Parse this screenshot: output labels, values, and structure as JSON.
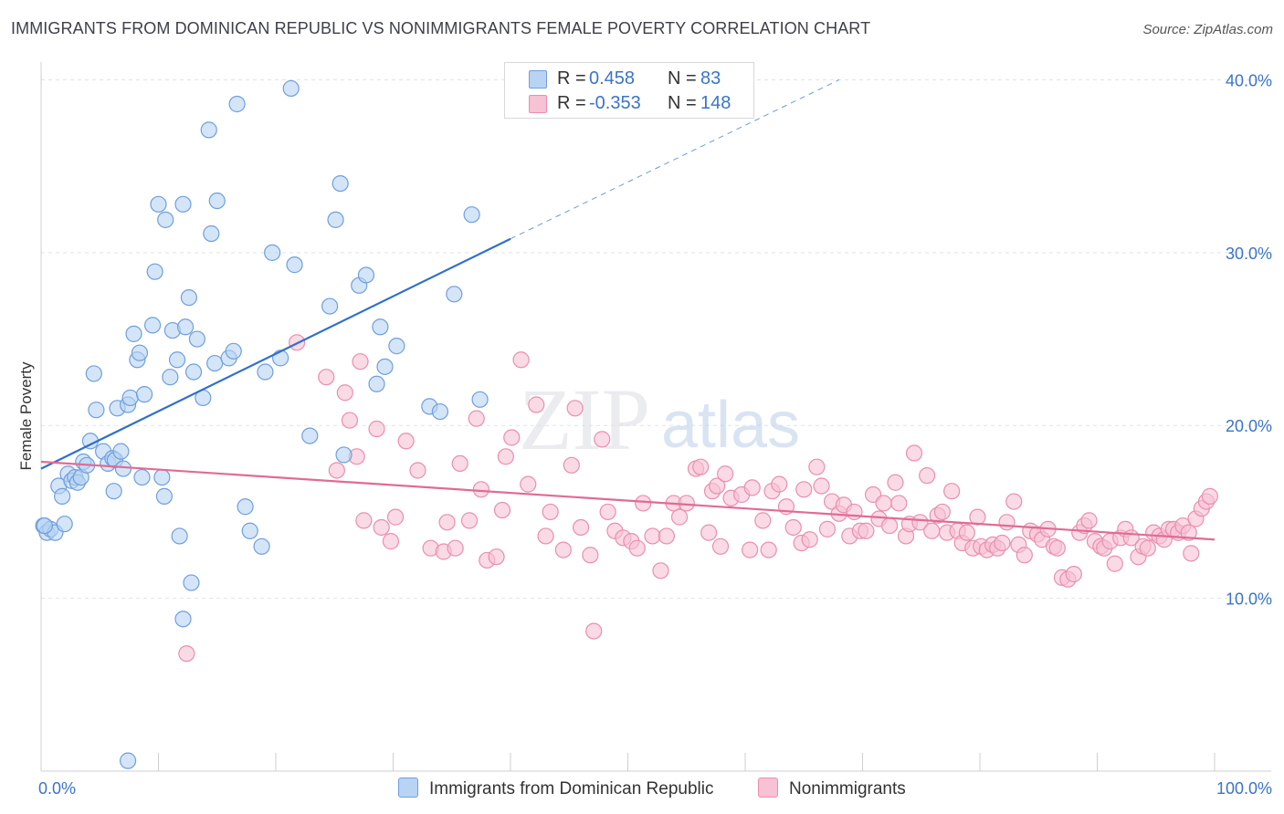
{
  "header": {
    "title": "IMMIGRANTS FROM DOMINICAN REPUBLIC VS NONIMMIGRANTS FEMALE POVERTY CORRELATION CHART",
    "source": "Source: ZipAtlas.com"
  },
  "watermark": {
    "zip": "ZIP",
    "atlas": "atlas"
  },
  "colors": {
    "blue_fill": "#b8d3f4",
    "blue_edge": "#6f9fdc",
    "blue_line": "#2f6fcf",
    "pink_fill": "#f7c2d3",
    "pink_edge": "#e98fae",
    "pink_line": "#e06b95",
    "grid": "#e3e3e3",
    "tick_label": "#3a74c9"
  },
  "legend_top": {
    "rows": [
      {
        "r_label": "R =",
        "r_value": "0.458",
        "n_label": "N =",
        "n_value": "83"
      },
      {
        "r_label": "R =",
        "r_value": "-0.353",
        "n_label": "N =",
        "n_value": "148"
      }
    ]
  },
  "legend_bottom": {
    "items": [
      {
        "label": "Immigrants from Dominican Republic"
      },
      {
        "label": "Nonimmigrants"
      }
    ]
  },
  "chart_data": {
    "type": "scatter",
    "title": "IMMIGRANTS FROM DOMINICAN REPUBLIC VS NONIMMIGRANTS FEMALE POVERTY CORRELATION CHART",
    "xlabel": "",
    "ylabel": "Female Poverty",
    "xlim": [
      0,
      100
    ],
    "ylim": [
      0,
      40.5
    ],
    "x_tick_labels": [
      {
        "value": 0,
        "label": "0.0%"
      },
      {
        "value": 100,
        "label": "100.0%"
      }
    ],
    "y_ticks": [
      {
        "value": 10,
        "label": "10.0%"
      },
      {
        "value": 20,
        "label": "20.0%"
      },
      {
        "value": 30,
        "label": "30.0%"
      },
      {
        "value": 40,
        "label": "40.0%"
      }
    ],
    "grid": true,
    "legend": "top-center",
    "series": [
      {
        "name": "Immigrants from Dominican Republic",
        "color": "#6f9fdc",
        "R": 0.458,
        "N": 83,
        "trend": {
          "x": [
            0,
            40
          ],
          "y": [
            17.5,
            30.8
          ],
          "extend_dashed_to": {
            "x": 68,
            "y": 40.0
          }
        },
        "points": [
          [
            0.2,
            14.2
          ],
          [
            0.5,
            13.8
          ],
          [
            0.8,
            14.0
          ],
          [
            1.2,
            13.8
          ],
          [
            2.0,
            14.3
          ],
          [
            1.5,
            16.5
          ],
          [
            1.8,
            15.9
          ],
          [
            2.3,
            17.2
          ],
          [
            2.6,
            16.8
          ],
          [
            2.9,
            17.0
          ],
          [
            3.1,
            16.7
          ],
          [
            3.4,
            17.0
          ],
          [
            3.6,
            17.9
          ],
          [
            3.9,
            17.7
          ],
          [
            4.2,
            19.1
          ],
          [
            4.5,
            23.0
          ],
          [
            4.7,
            20.9
          ],
          [
            5.3,
            18.5
          ],
          [
            5.7,
            17.8
          ],
          [
            6.1,
            18.1
          ],
          [
            6.3,
            18.0
          ],
          [
            6.2,
            16.2
          ],
          [
            6.5,
            21.0
          ],
          [
            6.8,
            18.5
          ],
          [
            7.0,
            17.5
          ],
          [
            7.4,
            21.2
          ],
          [
            7.6,
            21.6
          ],
          [
            7.9,
            25.3
          ],
          [
            8.2,
            23.8
          ],
          [
            8.4,
            24.2
          ],
          [
            8.8,
            21.8
          ],
          [
            8.6,
            17.0
          ],
          [
            9.5,
            25.8
          ],
          [
            9.7,
            28.9
          ],
          [
            10.0,
            32.8
          ],
          [
            10.3,
            17.0
          ],
          [
            10.5,
            15.9
          ],
          [
            10.6,
            31.9
          ],
          [
            11.0,
            22.8
          ],
          [
            11.2,
            25.5
          ],
          [
            11.6,
            23.8
          ],
          [
            11.8,
            13.6
          ],
          [
            12.1,
            32.8
          ],
          [
            12.3,
            25.7
          ],
          [
            12.6,
            27.4
          ],
          [
            12.8,
            10.9
          ],
          [
            13.0,
            23.1
          ],
          [
            13.3,
            25.0
          ],
          [
            13.8,
            21.6
          ],
          [
            14.3,
            37.1
          ],
          [
            14.5,
            31.1
          ],
          [
            14.8,
            23.6
          ],
          [
            15.0,
            33.0
          ],
          [
            16.0,
            23.9
          ],
          [
            16.4,
            24.3
          ],
          [
            16.7,
            38.6
          ],
          [
            17.4,
            15.3
          ],
          [
            17.8,
            13.9
          ],
          [
            18.8,
            13.0
          ],
          [
            19.1,
            23.1
          ],
          [
            19.7,
            30.0
          ],
          [
            20.4,
            23.9
          ],
          [
            21.3,
            39.5
          ],
          [
            21.6,
            29.3
          ],
          [
            22.9,
            19.4
          ],
          [
            24.6,
            26.9
          ],
          [
            25.1,
            31.9
          ],
          [
            25.5,
            34.0
          ],
          [
            25.8,
            18.3
          ],
          [
            27.1,
            28.1
          ],
          [
            27.7,
            28.7
          ],
          [
            28.6,
            22.4
          ],
          [
            28.9,
            25.7
          ],
          [
            29.3,
            23.4
          ],
          [
            30.3,
            24.6
          ],
          [
            33.1,
            21.1
          ],
          [
            34.0,
            20.8
          ],
          [
            35.2,
            27.6
          ],
          [
            36.7,
            32.2
          ],
          [
            37.4,
            21.5
          ],
          [
            12.1,
            8.8
          ],
          [
            7.4,
            0.6
          ],
          [
            0.3,
            14.2
          ]
        ]
      },
      {
        "name": "Nonimmigrants",
        "color": "#e98fae",
        "R": -0.353,
        "N": 148,
        "trend": {
          "x": [
            0,
            100
          ],
          "y": [
            17.9,
            13.4
          ]
        },
        "points": [
          [
            12.4,
            6.8
          ],
          [
            21.8,
            24.8
          ],
          [
            24.3,
            22.8
          ],
          [
            25.2,
            17.4
          ],
          [
            25.9,
            21.9
          ],
          [
            26.3,
            20.3
          ],
          [
            26.9,
            18.2
          ],
          [
            27.2,
            23.7
          ],
          [
            27.5,
            14.5
          ],
          [
            28.6,
            19.8
          ],
          [
            29.0,
            14.1
          ],
          [
            29.8,
            13.3
          ],
          [
            30.2,
            14.7
          ],
          [
            31.1,
            19.1
          ],
          [
            32.1,
            17.4
          ],
          [
            33.2,
            12.9
          ],
          [
            34.3,
            12.7
          ],
          [
            34.6,
            14.4
          ],
          [
            35.3,
            12.9
          ],
          [
            35.7,
            17.8
          ],
          [
            36.5,
            14.5
          ],
          [
            37.1,
            20.4
          ],
          [
            37.5,
            16.3
          ],
          [
            38.0,
            12.2
          ],
          [
            38.8,
            12.4
          ],
          [
            39.3,
            15.1
          ],
          [
            39.6,
            18.2
          ],
          [
            40.1,
            19.3
          ],
          [
            40.9,
            23.8
          ],
          [
            41.5,
            16.6
          ],
          [
            42.2,
            21.2
          ],
          [
            43.0,
            13.6
          ],
          [
            43.4,
            15.0
          ],
          [
            44.5,
            12.8
          ],
          [
            45.2,
            17.7
          ],
          [
            45.5,
            21.0
          ],
          [
            46.0,
            14.1
          ],
          [
            46.8,
            12.5
          ],
          [
            47.1,
            8.1
          ],
          [
            47.8,
            19.2
          ],
          [
            48.3,
            15.0
          ],
          [
            48.9,
            13.9
          ],
          [
            49.6,
            13.5
          ],
          [
            50.3,
            13.3
          ],
          [
            50.8,
            12.9
          ],
          [
            51.3,
            15.5
          ],
          [
            52.1,
            13.6
          ],
          [
            52.8,
            11.6
          ],
          [
            53.3,
            13.6
          ],
          [
            53.9,
            15.5
          ],
          [
            54.4,
            14.7
          ],
          [
            55.0,
            15.5
          ],
          [
            55.8,
            17.5
          ],
          [
            56.2,
            17.6
          ],
          [
            56.9,
            13.8
          ],
          [
            57.2,
            16.2
          ],
          [
            57.6,
            16.5
          ],
          [
            57.9,
            13.0
          ],
          [
            58.3,
            17.2
          ],
          [
            58.8,
            15.8
          ],
          [
            59.7,
            16.0
          ],
          [
            60.4,
            12.8
          ],
          [
            60.6,
            16.4
          ],
          [
            61.5,
            14.5
          ],
          [
            62.0,
            12.8
          ],
          [
            62.3,
            16.2
          ],
          [
            62.9,
            16.6
          ],
          [
            63.5,
            15.3
          ],
          [
            64.1,
            14.1
          ],
          [
            64.8,
            13.2
          ],
          [
            65.0,
            16.3
          ],
          [
            65.5,
            13.4
          ],
          [
            66.1,
            17.6
          ],
          [
            66.5,
            16.5
          ],
          [
            67.0,
            14.0
          ],
          [
            67.4,
            15.6
          ],
          [
            68.0,
            14.9
          ],
          [
            68.4,
            15.4
          ],
          [
            68.9,
            13.6
          ],
          [
            69.3,
            15.0
          ],
          [
            69.8,
            13.9
          ],
          [
            70.3,
            13.9
          ],
          [
            70.9,
            16.0
          ],
          [
            71.4,
            14.6
          ],
          [
            71.8,
            15.5
          ],
          [
            72.3,
            14.2
          ],
          [
            72.8,
            16.7
          ],
          [
            73.1,
            15.5
          ],
          [
            73.7,
            13.6
          ],
          [
            74.0,
            14.3
          ],
          [
            74.4,
            18.4
          ],
          [
            74.9,
            14.4
          ],
          [
            75.5,
            17.1
          ],
          [
            75.9,
            13.9
          ],
          [
            76.4,
            14.8
          ],
          [
            76.8,
            15.0
          ],
          [
            77.2,
            13.8
          ],
          [
            77.6,
            16.2
          ],
          [
            78.1,
            13.9
          ],
          [
            78.5,
            13.2
          ],
          [
            78.9,
            13.8
          ],
          [
            79.4,
            12.9
          ],
          [
            79.8,
            14.7
          ],
          [
            80.1,
            13.0
          ],
          [
            80.6,
            12.8
          ],
          [
            81.1,
            13.1
          ],
          [
            81.5,
            12.9
          ],
          [
            81.9,
            13.2
          ],
          [
            82.3,
            14.4
          ],
          [
            82.9,
            15.6
          ],
          [
            83.3,
            13.1
          ],
          [
            83.8,
            12.5
          ],
          [
            84.3,
            13.9
          ],
          [
            84.9,
            13.7
          ],
          [
            85.3,
            13.4
          ],
          [
            85.8,
            14.0
          ],
          [
            86.3,
            13.0
          ],
          [
            86.6,
            12.9
          ],
          [
            87.0,
            11.2
          ],
          [
            87.5,
            11.1
          ],
          [
            88.0,
            11.4
          ],
          [
            88.5,
            13.8
          ],
          [
            88.9,
            14.2
          ],
          [
            89.3,
            14.5
          ],
          [
            89.8,
            13.3
          ],
          [
            90.3,
            13.0
          ],
          [
            90.6,
            12.9
          ],
          [
            91.1,
            13.3
          ],
          [
            91.5,
            12.0
          ],
          [
            92.0,
            13.5
          ],
          [
            92.4,
            14.0
          ],
          [
            92.9,
            13.5
          ],
          [
            93.5,
            12.4
          ],
          [
            93.9,
            13.0
          ],
          [
            94.3,
            12.9
          ],
          [
            94.8,
            13.8
          ],
          [
            95.3,
            13.6
          ],
          [
            95.7,
            13.4
          ],
          [
            96.1,
            14.0
          ],
          [
            96.5,
            14.0
          ],
          [
            96.9,
            13.8
          ],
          [
            97.3,
            14.2
          ],
          [
            97.8,
            13.8
          ],
          [
            98.0,
            12.6
          ],
          [
            98.4,
            14.6
          ],
          [
            98.9,
            15.2
          ],
          [
            99.3,
            15.6
          ],
          [
            99.6,
            15.9
          ]
        ]
      }
    ]
  }
}
